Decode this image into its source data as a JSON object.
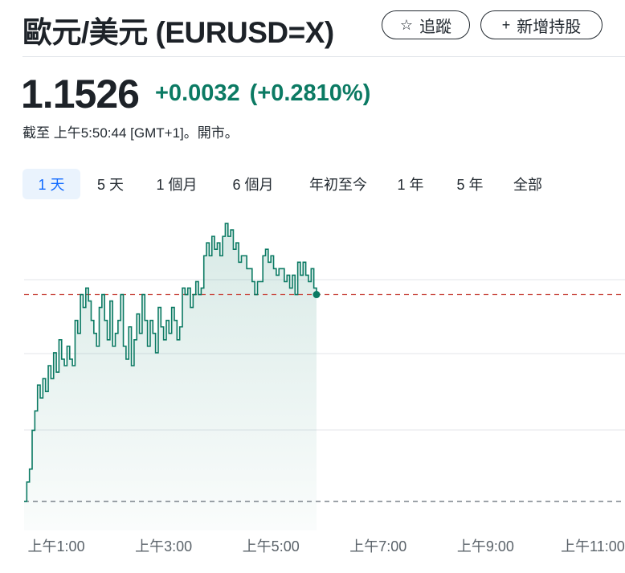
{
  "header": {
    "title": "歐元/美元 (EURUSD=X)",
    "follow_label": "追蹤",
    "add_label": "新增持股"
  },
  "quote": {
    "price": "1.1526",
    "change": "+0.0032",
    "change_percent": "(+0.2810%)",
    "as_of": "截至 上午5:50:44 [GMT+1]。開市。",
    "change_color": "#0b7a63"
  },
  "ranges": [
    "1 天",
    "5 天",
    "1 個月",
    "6 個月",
    "年初至今",
    "1 年",
    "5 年",
    "全部"
  ],
  "active_range": "1 天",
  "chart_data": {
    "type": "area",
    "x_ticks": [
      "上午1:00",
      "上午3:00",
      "上午5:00",
      "上午7:00",
      "上午9:00",
      "上午11:00"
    ],
    "x_range_hours": [
      0.4,
      11.6
    ],
    "ylim": [
      1.1492,
      1.1538
    ],
    "previous_close": 1.1494,
    "reference_line": 1.1526,
    "last_value": 1.1526,
    "line_color": "#0b7a63",
    "series": [
      {
        "x": [
          0.4,
          0.45,
          0.5,
          0.55,
          0.6,
          0.65,
          0.7,
          0.75,
          0.8,
          0.85,
          0.9,
          0.95,
          1.0,
          1.05,
          1.1,
          1.15,
          1.2,
          1.25,
          1.3,
          1.35,
          1.4,
          1.45,
          1.5,
          1.55,
          1.6,
          1.65,
          1.7,
          1.75,
          1.8,
          1.85,
          1.9,
          1.95,
          2.0,
          2.05,
          2.1,
          2.15,
          2.2,
          2.25,
          2.3,
          2.35,
          2.4,
          2.45,
          2.5,
          2.55,
          2.6,
          2.65,
          2.7,
          2.75,
          2.8,
          2.85,
          2.9,
          2.95,
          3.0,
          3.05,
          3.1,
          3.15,
          3.2,
          3.25,
          3.3,
          3.35,
          3.4,
          3.45,
          3.5,
          3.55,
          3.6,
          3.65,
          3.7,
          3.75,
          3.8,
          3.85,
          3.9,
          3.95,
          4.0,
          4.05,
          4.1,
          4.15,
          4.2,
          4.25,
          4.3,
          4.35,
          4.4,
          4.45,
          4.5,
          4.55,
          4.6,
          4.65,
          4.7,
          4.75,
          4.8,
          4.85,
          4.9,
          4.95,
          5.0,
          5.05,
          5.1,
          5.15,
          5.2,
          5.25,
          5.3,
          5.35,
          5.4,
          5.45,
          5.5,
          5.55,
          5.6,
          5.65,
          5.7,
          5.75,
          5.8,
          5.85
        ],
        "y": [
          1.1494,
          1.1497,
          1.1499,
          1.1505,
          1.1508,
          1.1512,
          1.151,
          1.1513,
          1.1511,
          1.1515,
          1.1513,
          1.1517,
          1.1514,
          1.1519,
          1.1516,
          1.1515,
          1.1518,
          1.1516,
          1.1515,
          1.1522,
          1.152,
          1.1526,
          1.1524,
          1.1527,
          1.1525,
          1.1522,
          1.152,
          1.1518,
          1.1524,
          1.1526,
          1.1522,
          1.1519,
          1.1525,
          1.1518,
          1.152,
          1.1522,
          1.1526,
          1.1518,
          1.1516,
          1.1521,
          1.1515,
          1.1519,
          1.1523,
          1.152,
          1.1526,
          1.1522,
          1.1518,
          1.1522,
          1.152,
          1.1517,
          1.1524,
          1.1521,
          1.1519,
          1.1522,
          1.152,
          1.1524,
          1.1522,
          1.1519,
          1.1521,
          1.1527,
          1.1526,
          1.1527,
          1.1524,
          1.1526,
          1.1528,
          1.1526,
          1.1527,
          1.1532,
          1.1534,
          1.1532,
          1.1535,
          1.1533,
          1.1534,
          1.1532,
          1.1535,
          1.1537,
          1.1535,
          1.1536,
          1.1533,
          1.1534,
          1.1531,
          1.1532,
          1.1532,
          1.153,
          1.153,
          1.1528,
          1.1526,
          1.1528,
          1.1528,
          1.1532,
          1.1533,
          1.1531,
          1.1532,
          1.153,
          1.1529,
          1.153,
          1.153,
          1.1528,
          1.1529,
          1.1527,
          1.1529,
          1.1526,
          1.1531,
          1.1529,
          1.1531,
          1.1529,
          1.1528,
          1.153,
          1.1527,
          1.1526
        ]
      }
    ]
  }
}
